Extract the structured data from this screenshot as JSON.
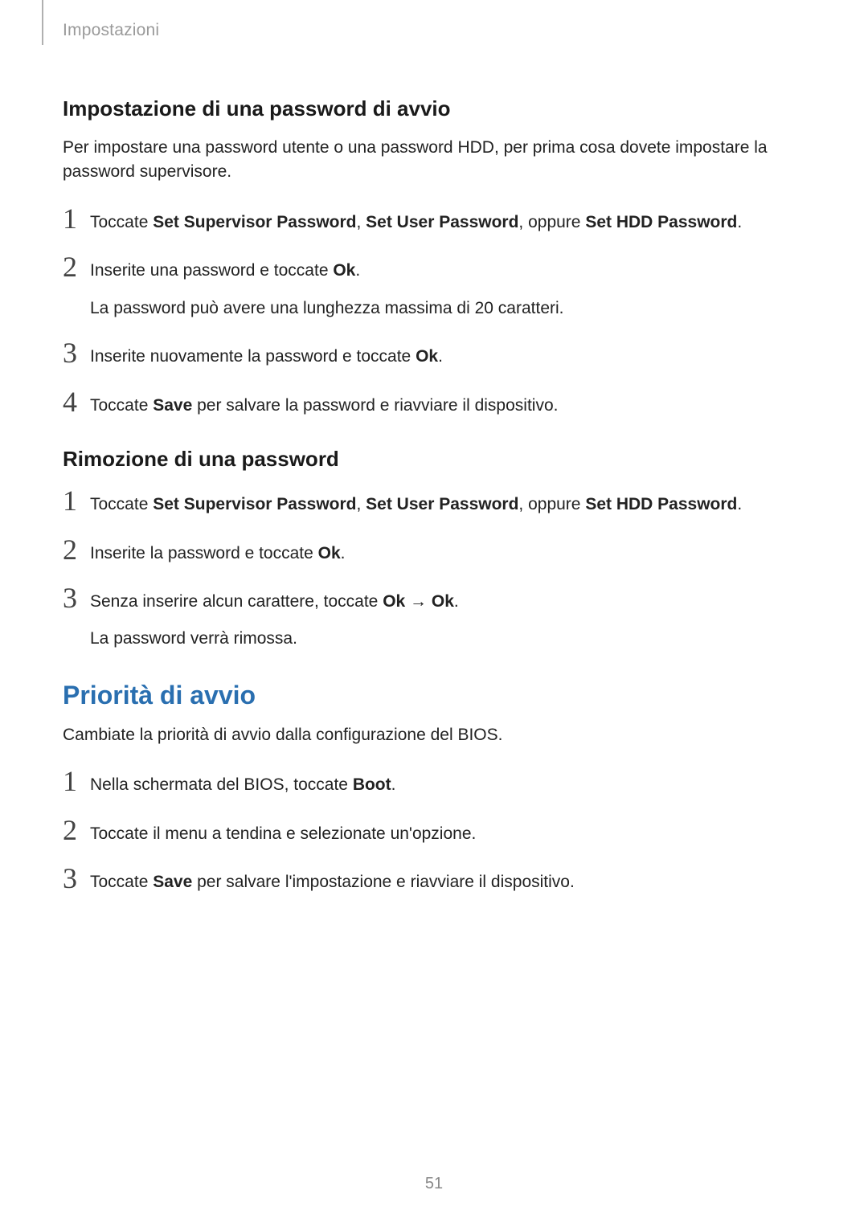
{
  "colors": {
    "text": "#1a1a1a",
    "muted": "#9a9a9a",
    "accent": "#2a6fb0",
    "page_number": "#888888",
    "tab_bar": "#b0b0b0",
    "background": "#ffffff"
  },
  "typography": {
    "body_fontsize_pt": 16,
    "h3_fontsize_pt": 20,
    "h2_fontsize_pt": 24,
    "step_num_fontsize_pt": 27,
    "header_fontsize_pt": 16
  },
  "header": "Impostazioni",
  "section1": {
    "title": "Impostazione di una password di avvio",
    "intro": "Per impostare una password utente o una password HDD, per prima cosa dovete impostare la password supervisore.",
    "steps": [
      {
        "num": "1",
        "parts": [
          "Toccate ",
          {
            "b": "Set Supervisor Password"
          },
          ", ",
          {
            "b": "Set User Password"
          },
          ", oppure ",
          {
            "b": "Set HDD Password"
          },
          "."
        ]
      },
      {
        "num": "2",
        "parts": [
          "Inserite una password e toccate ",
          {
            "b": "Ok"
          },
          "."
        ],
        "sub": "La password può avere una lunghezza massima di 20 caratteri."
      },
      {
        "num": "3",
        "parts": [
          "Inserite nuovamente la password e toccate ",
          {
            "b": "Ok"
          },
          "."
        ]
      },
      {
        "num": "4",
        "parts": [
          "Toccate ",
          {
            "b": "Save"
          },
          " per salvare la password e riavviare il dispositivo."
        ]
      }
    ]
  },
  "section2": {
    "title": "Rimozione di una password",
    "steps": [
      {
        "num": "1",
        "parts": [
          "Toccate ",
          {
            "b": "Set Supervisor Password"
          },
          ", ",
          {
            "b": "Set User Password"
          },
          ", oppure ",
          {
            "b": "Set HDD Password"
          },
          "."
        ]
      },
      {
        "num": "2",
        "parts": [
          "Inserite la password e toccate ",
          {
            "b": "Ok"
          },
          "."
        ]
      },
      {
        "num": "3",
        "parts": [
          "Senza inserire alcun carattere, toccate ",
          {
            "b": "Ok"
          },
          " → ",
          {
            "b": "Ok"
          },
          "."
        ],
        "sub": "La password verrà rimossa."
      }
    ]
  },
  "section3": {
    "title": "Priorità di avvio",
    "intro": "Cambiate la priorità di avvio dalla configurazione del BIOS.",
    "steps": [
      {
        "num": "1",
        "parts": [
          "Nella schermata del BIOS, toccate ",
          {
            "b": "Boot"
          },
          "."
        ]
      },
      {
        "num": "2",
        "parts": [
          "Toccate il menu a tendina e selezionate un'opzione."
        ]
      },
      {
        "num": "3",
        "parts": [
          "Toccate ",
          {
            "b": "Save"
          },
          " per salvare l'impostazione e riavviare il dispositivo."
        ]
      }
    ]
  },
  "page_number": "51"
}
